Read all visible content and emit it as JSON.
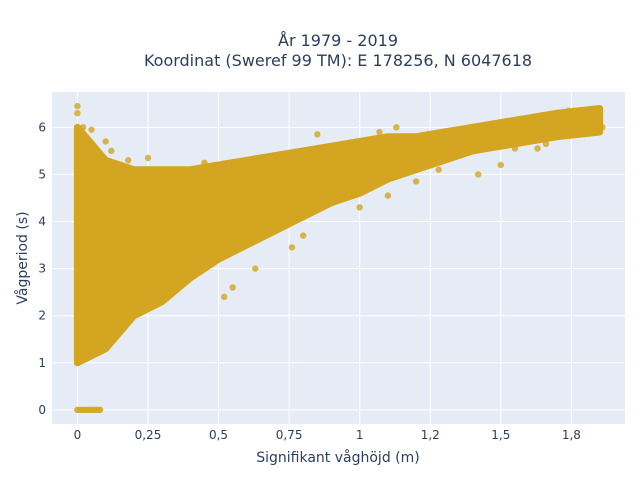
{
  "chart_data": {
    "type": "scatter",
    "title_line1": "År 1979 - 2019",
    "title_line2": "Koordinat (Sweref 99 TM): E 178256, N 6047618",
    "xlabel": "Signifikant våghöjd (m)",
    "ylabel": "Vågperiod (s)",
    "xlim": [
      -0.09,
      1.94
    ],
    "ylim": [
      -0.3,
      6.75
    ],
    "x_ticks": [
      {
        "value": 0,
        "label": "0"
      },
      {
        "value": 0.25,
        "label": "0,25"
      },
      {
        "value": 0.5,
        "label": "0,5"
      },
      {
        "value": 0.75,
        "label": "0,75"
      },
      {
        "value": 1,
        "label": "1"
      },
      {
        "value": 1.25,
        "label": "1,2"
      },
      {
        "value": 1.5,
        "label": "1,5"
      },
      {
        "value": 1.75,
        "label": "1,8"
      }
    ],
    "y_ticks": [
      {
        "value": 0,
        "label": "0"
      },
      {
        "value": 1,
        "label": "1"
      },
      {
        "value": 2,
        "label": "2"
      },
      {
        "value": 3,
        "label": "3"
      },
      {
        "value": 4,
        "label": "4"
      },
      {
        "value": 5,
        "label": "5"
      },
      {
        "value": 6,
        "label": "6"
      }
    ],
    "grid": true,
    "marker_color": "#D4A520",
    "plot_background": "#E5ECF6",
    "density_envelope": [
      {
        "x": 0.0,
        "lower": 1.0,
        "upper": 6.0
      },
      {
        "x": 0.1,
        "lower": 1.3,
        "upper": 5.3
      },
      {
        "x": 0.2,
        "lower": 2.0,
        "upper": 5.1
      },
      {
        "x": 0.3,
        "lower": 2.3,
        "upper": 5.1
      },
      {
        "x": 0.4,
        "lower": 2.8,
        "upper": 5.1
      },
      {
        "x": 0.5,
        "lower": 3.2,
        "upper": 5.2
      },
      {
        "x": 0.6,
        "lower": 3.5,
        "upper": 5.3
      },
      {
        "x": 0.7,
        "lower": 3.8,
        "upper": 5.4
      },
      {
        "x": 0.8,
        "lower": 4.1,
        "upper": 5.5
      },
      {
        "x": 0.9,
        "lower": 4.4,
        "upper": 5.6
      },
      {
        "x": 1.0,
        "lower": 4.6,
        "upper": 5.7
      },
      {
        "x": 1.1,
        "lower": 4.9,
        "upper": 5.8
      },
      {
        "x": 1.2,
        "lower": 5.1,
        "upper": 5.8
      },
      {
        "x": 1.3,
        "lower": 5.3,
        "upper": 5.9
      },
      {
        "x": 1.4,
        "lower": 5.5,
        "upper": 6.0
      },
      {
        "x": 1.5,
        "lower": 5.6,
        "upper": 6.1
      },
      {
        "x": 1.6,
        "lower": 5.7,
        "upper": 6.2
      },
      {
        "x": 1.7,
        "lower": 5.8,
        "upper": 6.3
      },
      {
        "x": 1.85,
        "lower": 5.9,
        "upper": 6.4
      }
    ],
    "outlier_points": [
      {
        "x": 0.0,
        "y": 6.45
      },
      {
        "x": 0.0,
        "y": 6.3
      },
      {
        "x": 0.02,
        "y": 6.0
      },
      {
        "x": 0.05,
        "y": 5.95
      },
      {
        "x": 0.1,
        "y": 5.7
      },
      {
        "x": 0.12,
        "y": 5.5
      },
      {
        "x": 0.18,
        "y": 5.3
      },
      {
        "x": 0.25,
        "y": 5.35
      },
      {
        "x": 0.45,
        "y": 5.25
      },
      {
        "x": 0.52,
        "y": 2.4
      },
      {
        "x": 0.55,
        "y": 2.6
      },
      {
        "x": 0.63,
        "y": 3.0
      },
      {
        "x": 0.76,
        "y": 3.45
      },
      {
        "x": 0.8,
        "y": 3.7
      },
      {
        "x": 0.85,
        "y": 5.85
      },
      {
        "x": 1.0,
        "y": 4.3
      },
      {
        "x": 1.07,
        "y": 5.9
      },
      {
        "x": 1.1,
        "y": 4.55
      },
      {
        "x": 1.13,
        "y": 6.0
      },
      {
        "x": 1.2,
        "y": 4.85
      },
      {
        "x": 1.25,
        "y": 5.2
      },
      {
        "x": 1.28,
        "y": 5.1
      },
      {
        "x": 1.42,
        "y": 5.0
      },
      {
        "x": 1.5,
        "y": 5.2
      },
      {
        "x": 1.55,
        "y": 5.55
      },
      {
        "x": 1.6,
        "y": 6.05
      },
      {
        "x": 1.63,
        "y": 5.55
      },
      {
        "x": 1.65,
        "y": 6.2
      },
      {
        "x": 1.66,
        "y": 5.65
      },
      {
        "x": 1.7,
        "y": 6.2
      },
      {
        "x": 1.72,
        "y": 6.0
      },
      {
        "x": 1.74,
        "y": 6.35
      },
      {
        "x": 1.76,
        "y": 6.35
      },
      {
        "x": 1.79,
        "y": 5.9
      },
      {
        "x": 1.84,
        "y": 6.35
      },
      {
        "x": 1.85,
        "y": 6.0
      },
      {
        "x": 1.86,
        "y": 6.0
      }
    ],
    "zero_points": [
      {
        "x": 0.0,
        "y": 0
      },
      {
        "x": 0.01,
        "y": 0
      },
      {
        "x": 0.02,
        "y": 0
      },
      {
        "x": 0.03,
        "y": 0
      },
      {
        "x": 0.04,
        "y": 0
      },
      {
        "x": 0.05,
        "y": 0
      },
      {
        "x": 0.06,
        "y": 0
      },
      {
        "x": 0.07,
        "y": 0
      },
      {
        "x": 0.08,
        "y": 0
      }
    ]
  }
}
